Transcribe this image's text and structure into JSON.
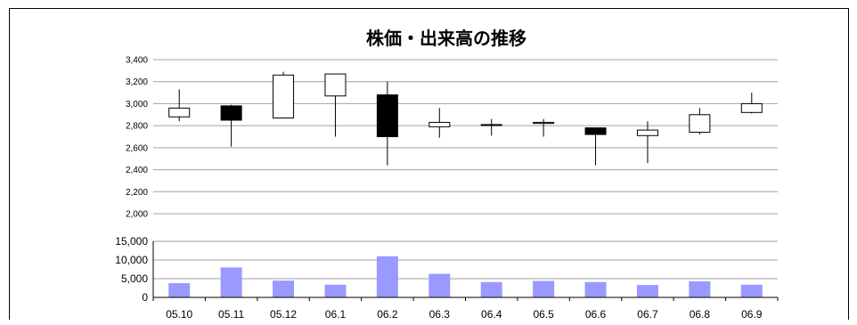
{
  "chart_data": [
    {
      "type": "candlestick",
      "title": "株価・出来高の推移",
      "categories": [
        "05.10",
        "05.11",
        "05.12",
        "06.1",
        "06.2",
        "06.3",
        "06.4",
        "06.5",
        "06.6",
        "06.7",
        "06.8",
        "06.9"
      ],
      "ylim": [
        2000,
        3400
      ],
      "yticks": [
        "2,000",
        "2,200",
        "2,400",
        "2,600",
        "2,800",
        "3,000",
        "3,200",
        "3,400"
      ],
      "ytick_values": [
        2000,
        2200,
        2400,
        2600,
        2800,
        3000,
        3200,
        3400
      ],
      "grid": true,
      "series": [
        {
          "open": [
            2880,
            2980,
            2870,
            3070,
            3080,
            2790,
            2810,
            2820,
            2780,
            2710,
            2740,
            2920
          ],
          "high": [
            3130,
            2990,
            3290,
            3270,
            3200,
            2960,
            2860,
            2860,
            2780,
            2840,
            2960,
            3100
          ],
          "low": [
            2840,
            2610,
            2870,
            2700,
            2440,
            2690,
            2710,
            2700,
            2440,
            2460,
            2720,
            2910
          ],
          "close": [
            2960,
            2850,
            3260,
            3270,
            2700,
            2830,
            2810,
            2830,
            2720,
            2760,
            2900,
            3000
          ]
        }
      ]
    },
    {
      "type": "bar",
      "categories": [
        "05.10",
        "05.11",
        "05.12",
        "06.1",
        "06.2",
        "06.3",
        "06.4",
        "06.5",
        "06.6",
        "06.7",
        "06.8",
        "06.9"
      ],
      "ylim": [
        0,
        15000
      ],
      "yticks": [
        "0",
        "5,000",
        "10,000",
        "15,000"
      ],
      "ytick_values": [
        0,
        5000,
        10000,
        15000
      ],
      "grid": true,
      "series": [
        {
          "values": [
            3800,
            8000,
            4500,
            3400,
            11000,
            6300,
            4100,
            4400,
            4100,
            3300,
            4300,
            3400
          ]
        }
      ]
    }
  ],
  "colors": {
    "volume_bar": "#9999ff",
    "bearish_body": "#000000",
    "bullish_body": "#ffffff",
    "grid": "#a0a0a0"
  }
}
